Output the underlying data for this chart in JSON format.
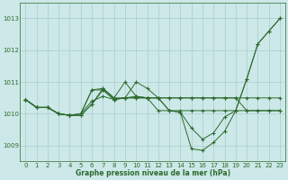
{
  "title": "Graphe pression niveau de la mer (hPa)",
  "bg_color": "#cce8e8",
  "grid_color": "#aacccc",
  "line_color": "#2d6a2d",
  "xlim": [
    -0.5,
    23.5
  ],
  "ylim": [
    1008.5,
    1013.5
  ],
  "yticks": [
    1009,
    1010,
    1011,
    1012,
    1013
  ],
  "xticks": [
    0,
    1,
    2,
    3,
    4,
    5,
    6,
    7,
    8,
    9,
    10,
    11,
    12,
    13,
    14,
    15,
    16,
    17,
    18,
    19,
    20,
    21,
    22,
    23
  ],
  "series": [
    [
      1010.45,
      1010.2,
      1010.2,
      1010.0,
      1009.95,
      1009.95,
      1010.3,
      1010.8,
      1010.5,
      1010.5,
      1011.0,
      1010.8,
      1010.5,
      1010.1,
      1010.05,
      1008.9,
      1008.85,
      1009.1,
      1009.45,
      1010.1,
      1011.1,
      1012.2,
      1012.6,
      1013.0
    ],
    [
      1010.45,
      1010.2,
      1010.2,
      1010.0,
      1009.95,
      1009.95,
      1010.3,
      1010.75,
      1010.45,
      1010.5,
      1010.55,
      1010.5,
      1010.5,
      1010.1,
      1010.1,
      1010.1,
      1010.1,
      1010.1,
      1010.1,
      1010.1,
      1010.1,
      1010.1,
      1010.1,
      1010.1
    ],
    [
      1010.45,
      1010.2,
      1010.2,
      1010.0,
      1009.95,
      1010.0,
      1010.75,
      1010.8,
      1010.5,
      1011.0,
      1010.55,
      1010.5,
      1010.1,
      1010.1,
      1010.05,
      1009.55,
      1009.2,
      1009.4,
      1009.9,
      1010.1,
      1011.1,
      1012.2,
      1012.6,
      1013.0
    ],
    [
      1010.45,
      1010.2,
      1010.2,
      1010.0,
      1009.95,
      1010.0,
      1010.4,
      1010.55,
      1010.45,
      1010.5,
      1010.5,
      1010.5,
      1010.5,
      1010.5,
      1010.5,
      1010.5,
      1010.5,
      1010.5,
      1010.5,
      1010.5,
      1010.5,
      1010.5,
      1010.5,
      1010.5
    ],
    [
      1010.45,
      1010.2,
      1010.2,
      1010.0,
      1009.95,
      1010.0,
      1010.75,
      1010.75,
      1010.45,
      1010.5,
      1010.5,
      1010.5,
      1010.5,
      1010.5,
      1010.5,
      1010.5,
      1010.5,
      1010.5,
      1010.5,
      1010.5,
      1010.1,
      1010.1,
      1010.1,
      1010.1
    ]
  ]
}
